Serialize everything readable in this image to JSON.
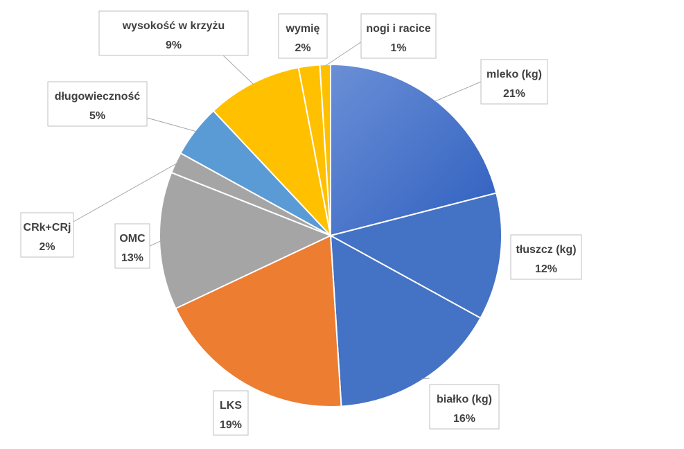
{
  "chart_data": {
    "type": "pie",
    "title": "",
    "start_angle_deg": 0,
    "direction": "clockwise",
    "slices": [
      {
        "label": "mleko (kg)",
        "value": 21,
        "value_label": "21%",
        "color": "#4472C4",
        "shade": "gradient"
      },
      {
        "label": "tłuszcz (kg)",
        "value": 12,
        "value_label": "12%",
        "color": "#4472C4"
      },
      {
        "label": "białko (kg)",
        "value": 16,
        "value_label": "16%",
        "color": "#4472C4"
      },
      {
        "label": "LKS",
        "value": 19,
        "value_label": "19%",
        "color": "#ED7D31"
      },
      {
        "label": "OMC",
        "value": 13,
        "value_label": "13%",
        "color": "#A5A5A5"
      },
      {
        "label": "CRk+CRj",
        "value": 2,
        "value_label": "2%",
        "color": "#A5A5A5"
      },
      {
        "label": "długowieczność",
        "value": 5,
        "value_label": "5%",
        "color": "#5B9BD5"
      },
      {
        "label": "wysokość w krzyżu",
        "value": 9,
        "value_label": "9%",
        "color": "#FFC000"
      },
      {
        "label": "wymię",
        "value": 2,
        "value_label": "2%",
        "color": "#FFC000"
      },
      {
        "label": "nogi i racice",
        "value": 1,
        "value_label": "1%",
        "color": "#FFC000"
      }
    ]
  }
}
